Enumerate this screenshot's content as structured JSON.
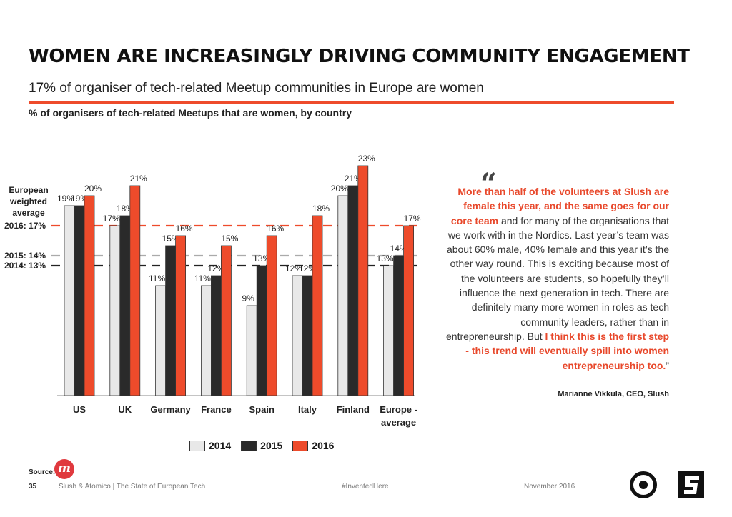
{
  "header": {
    "title": "WOMEN ARE INCREASINGLY DRIVING COMMUNITY ENGAGEMENT",
    "subtitle": "17% of organiser of tech-related Meetup communities in Europe are women",
    "chart_description": "% of organisers of tech-related Meetups that are women, by country"
  },
  "chart_data": {
    "type": "bar",
    "title": "% of organisers of tech-related Meetups that are women, by country",
    "categories": [
      "US",
      "UK",
      "Germany",
      "France",
      "Spain",
      "Italy",
      "Finland",
      "Europe - average"
    ],
    "series": [
      {
        "name": "2014",
        "color": "#e8e8e8",
        "values": [
          19,
          17,
          11,
          11,
          9,
          12,
          20,
          13
        ]
      },
      {
        "name": "2015",
        "color": "#2a2a2a",
        "values": [
          19,
          18,
          15,
          12,
          13,
          12,
          21,
          14
        ]
      },
      {
        "name": "2016",
        "color": "#ee4b2b",
        "values": [
          20,
          21,
          16,
          15,
          16,
          18,
          23,
          17
        ]
      }
    ],
    "data_label_suffix": "%",
    "ylim": [
      0,
      23
    ],
    "reference_lines": [
      {
        "label": "2016: 17%",
        "value": 17,
        "color": "#ee4b2b"
      },
      {
        "label": "2015: 14%",
        "value": 14,
        "color": "#aaaaaa"
      },
      {
        "label": "2014: 13%",
        "value": 13,
        "color": "#222222"
      }
    ],
    "reference_heading": [
      "European",
      "weighted",
      "average"
    ],
    "legend": [
      "2014",
      "2015",
      "2016"
    ],
    "legend_position": "bottom"
  },
  "quote": {
    "open_mark": "“",
    "segments": [
      {
        "text": "More than half of the volunteers at Slush are female this year, and the same goes for our core team",
        "highlight": true
      },
      {
        "text": " and for many of the organisations that we work with in the Nordics. Last year’s team was about 60% male, 40% female and this year it’s the other way round. This is exciting because most of the volunteers are students, so hopefully they’ll influence the next generation in tech. There are definitely many more women in roles as tech community leaders, rather than in entrepreneurship. But ",
        "highlight": false
      },
      {
        "text": "I think this is the first step - this trend will eventually spill into women entrepreneurship too.",
        "highlight": true
      },
      {
        "text": "”",
        "highlight": false
      }
    ],
    "attribution": "Marianne Vikkula, CEO, Slush"
  },
  "footer": {
    "source_label": "Source:",
    "source_logo": "m",
    "page_number": "35",
    "publication": "Slush & Atomico  |  The State of European Tech",
    "hashtag": "#InventedHere",
    "date": "November 2016"
  }
}
